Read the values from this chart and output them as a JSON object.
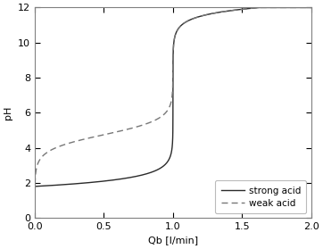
{
  "title": "",
  "xlabel": "Qb [l/min]",
  "ylabel": "pH",
  "xlim": [
    0,
    2
  ],
  "ylim": [
    0,
    12
  ],
  "xticks": [
    0,
    0.5,
    1.0,
    1.5,
    2.0
  ],
  "yticks": [
    0,
    2,
    4,
    6,
    8,
    10,
    12
  ],
  "strong_acid_color": "#2a2a2a",
  "weak_acid_color": "#777777",
  "legend_labels": [
    "strong acid",
    "weak acid"
  ],
  "background_color": "#ffffff",
  "axes_color": "#808080",
  "figsize": [
    3.62,
    2.79
  ],
  "dpi": 100
}
